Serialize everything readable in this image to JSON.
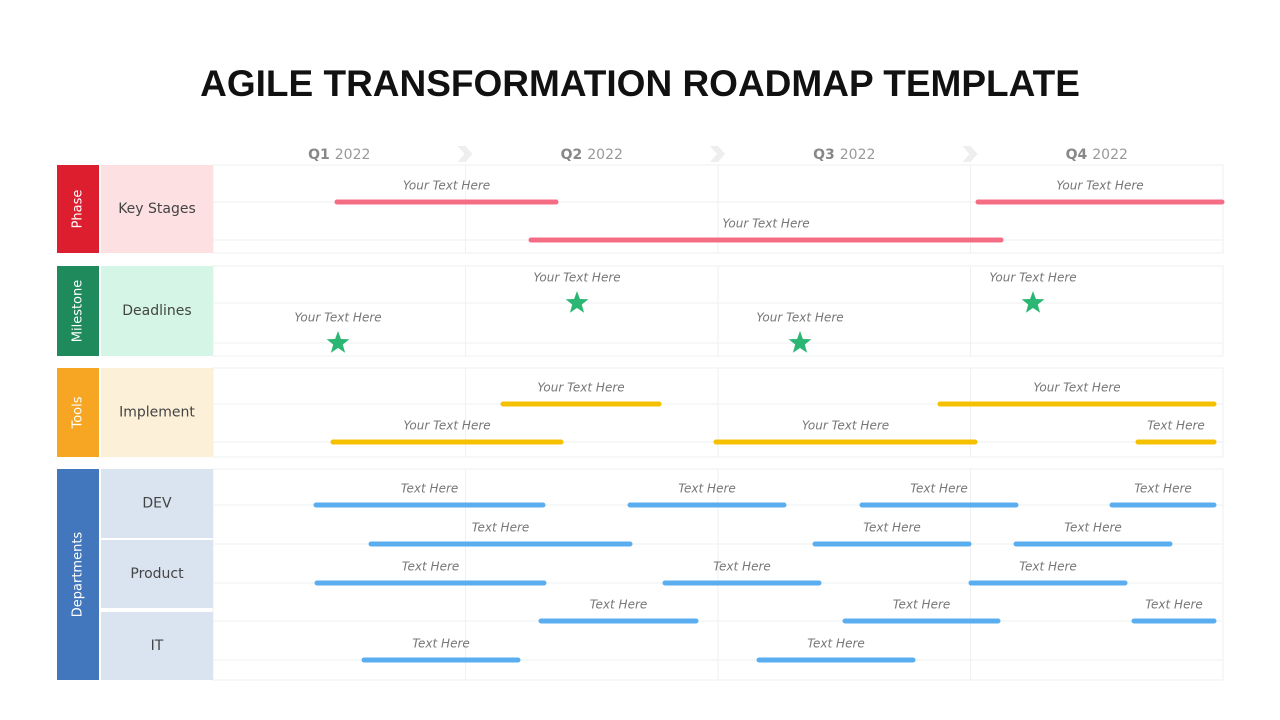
{
  "title": "AGILE TRANSFORMATION ROADMAP TEMPLATE",
  "quarters": [
    {
      "label": "Q1",
      "year": "2022"
    },
    {
      "label": "Q2",
      "year": "2022"
    },
    {
      "label": "Q3",
      "year": "2022"
    },
    {
      "label": "Q4",
      "year": "2022"
    }
  ],
  "sections": [
    {
      "name": "Phase",
      "rows": [
        {
          "label": "Key Stages",
          "items": [
            "Your Text Here",
            "Your Text Here",
            "Your Text Here"
          ]
        }
      ]
    },
    {
      "name": "Milestone",
      "rows": [
        {
          "label": "Deadlines",
          "items": [
            "Your Text Here",
            "Your Text Here",
            "Your Text Here",
            "Your Text Here"
          ]
        }
      ]
    },
    {
      "name": "Tools",
      "rows": [
        {
          "label": "Implement",
          "items": [
            "Your Text Here",
            "Your Text Here",
            "Your Text Here",
            "Your Text Here",
            "Text Here"
          ]
        }
      ]
    },
    {
      "name": "Departments",
      "rows": [
        {
          "label": "DEV",
          "items": [
            "Text Here",
            "Text Here",
            "Text Here",
            "Text Here",
            "Text Here",
            "Text Here",
            "Text Here"
          ]
        },
        {
          "label": "Product",
          "items": [
            "Text Here",
            "Text Here",
            "Text Here",
            "Text Here",
            "Text Here",
            "Text Here"
          ]
        },
        {
          "label": "IT",
          "items": [
            "Text Here",
            "Text Here"
          ]
        }
      ]
    }
  ]
}
